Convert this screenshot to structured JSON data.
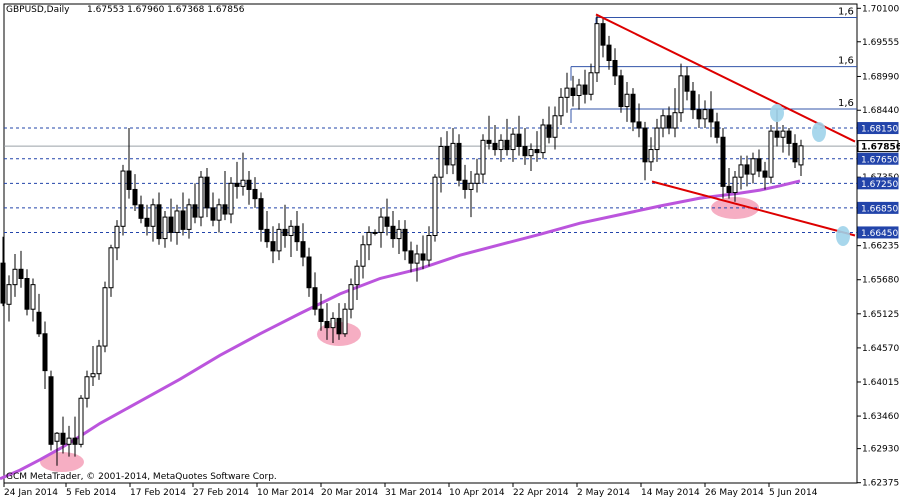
{
  "header": {
    "symbol": "GBPUSD,Daily",
    "ohlc": "1.67553 1.67960 1.67368 1.67856"
  },
  "footer": {
    "copyright": "GCM MetaTrader, © 2001-2014, MetaQuotes Software Corp."
  },
  "colors": {
    "background": "#ffffff",
    "axis": "#000000",
    "candle_up": "#ffffff",
    "candle_down": "#000000",
    "ma": "#bb55dd",
    "trend": "#dd0000",
    "levels": "#2244aa",
    "current_line": "#9aa0a6",
    "pink_marker": "#f4a0b8",
    "blue_marker": "#9fd3ea",
    "resistance": "#3355aa"
  },
  "chart_data": {
    "type": "candlestick",
    "symbol": "GBPUSD",
    "timeframe": "Daily",
    "ylim": [
      1.6237,
      1.7017
    ],
    "y_ticks": [
      "1.70100",
      "1.69555",
      "1.68990",
      "1.68440",
      "1.67350",
      "1.66235",
      "1.65680",
      "1.65125",
      "1.64570",
      "1.64015",
      "1.63460",
      "1.62930",
      "1.62375"
    ],
    "x_labels": [
      "24 Jan 2014",
      "5 Feb 2014",
      "17 Feb 2014",
      "27 Feb 2014",
      "10 Mar 2014",
      "20 Mar 2014",
      "31 Mar 2014",
      "10 Apr 2014",
      "22 Apr 2014",
      "2 May 2014",
      "14 May 2014",
      "26 May 2014",
      "5 Jun 2014"
    ],
    "levels": [
      {
        "label": "1.68150",
        "value": 1.6815,
        "style": "outline"
      },
      {
        "label": "1.67856",
        "value": 1.67856,
        "style": "current"
      },
      {
        "label": "1.67650",
        "value": 1.6765,
        "style": "outline"
      },
      {
        "label": "1.67250",
        "value": 1.6725,
        "style": "outline"
      },
      {
        "label": "1.66850",
        "value": 1.6685,
        "style": "outline"
      },
      {
        "label": "1.66450",
        "value": 1.6645,
        "style": "outline"
      }
    ],
    "fib_labels": [
      "1,6",
      "1,6",
      "1,6"
    ],
    "fib_levels": [
      1.6995,
      1.6915,
      1.6846
    ],
    "ma_points": [
      [
        0,
        1.6244
      ],
      [
        20,
        1.6258
      ],
      [
        40,
        1.6275
      ],
      [
        60,
        1.6293
      ],
      [
        80,
        1.6313
      ],
      [
        100,
        1.6334
      ],
      [
        140,
        1.637
      ],
      [
        180,
        1.6406
      ],
      [
        220,
        1.6445
      ],
      [
        260,
        1.648
      ],
      [
        300,
        1.6513
      ],
      [
        340,
        1.6545
      ],
      [
        380,
        1.657
      ],
      [
        420,
        1.6586
      ],
      [
        460,
        1.6608
      ],
      [
        500,
        1.6625
      ],
      [
        540,
        1.6642
      ],
      [
        580,
        1.666
      ],
      [
        620,
        1.6674
      ],
      [
        660,
        1.6688
      ],
      [
        700,
        1.6701
      ],
      [
        740,
        1.6709
      ],
      [
        760,
        1.6714
      ],
      [
        780,
        1.6721
      ],
      [
        800,
        1.6729
      ]
    ],
    "trendlines": [
      {
        "from": [
          596,
          1.7
        ],
        "to": [
          855,
          1.6793
        ]
      },
      {
        "from": [
          652,
          1.6728
        ],
        "to": [
          855,
          1.664
        ]
      }
    ],
    "candles": [
      {
        "x": 3,
        "o": 1.6595,
        "h": 1.6638,
        "l": 1.6525,
        "c": 1.653
      },
      {
        "x": 9,
        "o": 1.6528,
        "h": 1.6575,
        "l": 1.65,
        "c": 1.656
      },
      {
        "x": 15,
        "o": 1.656,
        "h": 1.661,
        "l": 1.654,
        "c": 1.6585
      },
      {
        "x": 21,
        "o": 1.6585,
        "h": 1.6615,
        "l": 1.6555,
        "c": 1.657
      },
      {
        "x": 27,
        "o": 1.657,
        "h": 1.6585,
        "l": 1.651,
        "c": 1.652
      },
      {
        "x": 33,
        "o": 1.652,
        "h": 1.657,
        "l": 1.65,
        "c": 1.656
      },
      {
        "x": 39,
        "o": 1.6515,
        "h": 1.6545,
        "l": 1.6475,
        "c": 1.648
      },
      {
        "x": 45,
        "o": 1.648,
        "h": 1.65,
        "l": 1.639,
        "c": 1.642
      },
      {
        "x": 51,
        "o": 1.641,
        "h": 1.642,
        "l": 1.629,
        "c": 1.63
      },
      {
        "x": 57,
        "o": 1.6305,
        "h": 1.632,
        "l": 1.6265,
        "c": 1.6318
      },
      {
        "x": 63,
        "o": 1.6318,
        "h": 1.6345,
        "l": 1.6285,
        "c": 1.63
      },
      {
        "x": 69,
        "o": 1.63,
        "h": 1.633,
        "l": 1.628,
        "c": 1.631
      },
      {
        "x": 75,
        "o": 1.631,
        "h": 1.6345,
        "l": 1.628,
        "c": 1.63
      },
      {
        "x": 81,
        "o": 1.63,
        "h": 1.638,
        "l": 1.6295,
        "c": 1.6375
      },
      {
        "x": 87,
        "o": 1.6375,
        "h": 1.642,
        "l": 1.636,
        "c": 1.641
      },
      {
        "x": 93,
        "o": 1.641,
        "h": 1.646,
        "l": 1.6395,
        "c": 1.6415
      },
      {
        "x": 99,
        "o": 1.6415,
        "h": 1.647,
        "l": 1.6405,
        "c": 1.646
      },
      {
        "x": 105,
        "o": 1.646,
        "h": 1.6565,
        "l": 1.645,
        "c": 1.6555
      },
      {
        "x": 111,
        "o": 1.6555,
        "h": 1.6625,
        "l": 1.654,
        "c": 1.662
      },
      {
        "x": 117,
        "o": 1.662,
        "h": 1.6665,
        "l": 1.66,
        "c": 1.6655
      },
      {
        "x": 123,
        "o": 1.6655,
        "h": 1.6755,
        "l": 1.664,
        "c": 1.6745
      },
      {
        "x": 129,
        "o": 1.6745,
        "h": 1.6815,
        "l": 1.67,
        "c": 1.6715
      },
      {
        "x": 135,
        "o": 1.6715,
        "h": 1.674,
        "l": 1.668,
        "c": 1.669
      },
      {
        "x": 141,
        "o": 1.669,
        "h": 1.6705,
        "l": 1.666,
        "c": 1.6668
      },
      {
        "x": 147,
        "o": 1.6668,
        "h": 1.669,
        "l": 1.664,
        "c": 1.6655
      },
      {
        "x": 153,
        "o": 1.6655,
        "h": 1.67,
        "l": 1.663,
        "c": 1.669
      },
      {
        "x": 159,
        "o": 1.669,
        "h": 1.671,
        "l": 1.6625,
        "c": 1.6635
      },
      {
        "x": 165,
        "o": 1.6635,
        "h": 1.668,
        "l": 1.662,
        "c": 1.667
      },
      {
        "x": 171,
        "o": 1.667,
        "h": 1.67,
        "l": 1.663,
        "c": 1.6645
      },
      {
        "x": 177,
        "o": 1.6645,
        "h": 1.669,
        "l": 1.6625,
        "c": 1.668
      },
      {
        "x": 183,
        "o": 1.668,
        "h": 1.671,
        "l": 1.664,
        "c": 1.665
      },
      {
        "x": 189,
        "o": 1.665,
        "h": 1.67,
        "l": 1.6635,
        "c": 1.669
      },
      {
        "x": 195,
        "o": 1.669,
        "h": 1.6725,
        "l": 1.666,
        "c": 1.667
      },
      {
        "x": 201,
        "o": 1.667,
        "h": 1.6745,
        "l": 1.6655,
        "c": 1.6735
      },
      {
        "x": 207,
        "o": 1.6735,
        "h": 1.675,
        "l": 1.667,
        "c": 1.6685
      },
      {
        "x": 213,
        "o": 1.6685,
        "h": 1.671,
        "l": 1.6655,
        "c": 1.6665
      },
      {
        "x": 219,
        "o": 1.6665,
        "h": 1.67,
        "l": 1.6645,
        "c": 1.669
      },
      {
        "x": 225,
        "o": 1.669,
        "h": 1.6745,
        "l": 1.6665,
        "c": 1.6675
      },
      {
        "x": 231,
        "o": 1.6675,
        "h": 1.6735,
        "l": 1.666,
        "c": 1.6725
      },
      {
        "x": 237,
        "o": 1.6725,
        "h": 1.676,
        "l": 1.67,
        "c": 1.672
      },
      {
        "x": 243,
        "o": 1.672,
        "h": 1.6775,
        "l": 1.6705,
        "c": 1.673
      },
      {
        "x": 249,
        "o": 1.673,
        "h": 1.6745,
        "l": 1.669,
        "c": 1.6715
      },
      {
        "x": 255,
        "o": 1.6715,
        "h": 1.6735,
        "l": 1.6685,
        "c": 1.67
      },
      {
        "x": 261,
        "o": 1.67,
        "h": 1.671,
        "l": 1.663,
        "c": 1.665
      },
      {
        "x": 267,
        "o": 1.665,
        "h": 1.668,
        "l": 1.662,
        "c": 1.663
      },
      {
        "x": 273,
        "o": 1.663,
        "h": 1.6655,
        "l": 1.6595,
        "c": 1.6615
      },
      {
        "x": 279,
        "o": 1.6615,
        "h": 1.666,
        "l": 1.66,
        "c": 1.665
      },
      {
        "x": 285,
        "o": 1.665,
        "h": 1.669,
        "l": 1.662,
        "c": 1.664
      },
      {
        "x": 291,
        "o": 1.664,
        "h": 1.6665,
        "l": 1.6605,
        "c": 1.6655
      },
      {
        "x": 297,
        "o": 1.6655,
        "h": 1.668,
        "l": 1.6615,
        "c": 1.663
      },
      {
        "x": 303,
        "o": 1.663,
        "h": 1.666,
        "l": 1.659,
        "c": 1.6605
      },
      {
        "x": 309,
        "o": 1.6605,
        "h": 1.662,
        "l": 1.654,
        "c": 1.6555
      },
      {
        "x": 315,
        "o": 1.6555,
        "h": 1.658,
        "l": 1.651,
        "c": 1.652
      },
      {
        "x": 321,
        "o": 1.652,
        "h": 1.6545,
        "l": 1.6485,
        "c": 1.65
      },
      {
        "x": 327,
        "o": 1.65,
        "h": 1.653,
        "l": 1.647,
        "c": 1.649
      },
      {
        "x": 333,
        "o": 1.649,
        "h": 1.6515,
        "l": 1.6465,
        "c": 1.6505
      },
      {
        "x": 339,
        "o": 1.6505,
        "h": 1.653,
        "l": 1.647,
        "c": 1.648
      },
      {
        "x": 345,
        "o": 1.648,
        "h": 1.653,
        "l": 1.6475,
        "c": 1.652
      },
      {
        "x": 351,
        "o": 1.652,
        "h": 1.657,
        "l": 1.6505,
        "c": 1.656
      },
      {
        "x": 357,
        "o": 1.656,
        "h": 1.66,
        "l": 1.6535,
        "c": 1.659
      },
      {
        "x": 363,
        "o": 1.659,
        "h": 1.664,
        "l": 1.657,
        "c": 1.6625
      },
      {
        "x": 369,
        "o": 1.6625,
        "h": 1.6655,
        "l": 1.66,
        "c": 1.6645
      },
      {
        "x": 375,
        "o": 1.6645,
        "h": 1.665,
        "l": 1.664,
        "c": 1.6645
      },
      {
        "x": 381,
        "o": 1.6645,
        "h": 1.6685,
        "l": 1.662,
        "c": 1.667
      },
      {
        "x": 387,
        "o": 1.667,
        "h": 1.67,
        "l": 1.664,
        "c": 1.6655
      },
      {
        "x": 393,
        "o": 1.6655,
        "h": 1.668,
        "l": 1.662,
        "c": 1.6635
      },
      {
        "x": 399,
        "o": 1.6635,
        "h": 1.6665,
        "l": 1.661,
        "c": 1.665
      },
      {
        "x": 405,
        "o": 1.665,
        "h": 1.6665,
        "l": 1.66,
        "c": 1.6615
      },
      {
        "x": 411,
        "o": 1.6615,
        "h": 1.663,
        "l": 1.658,
        "c": 1.6595
      },
      {
        "x": 417,
        "o": 1.6595,
        "h": 1.6625,
        "l": 1.6565,
        "c": 1.661
      },
      {
        "x": 423,
        "o": 1.661,
        "h": 1.664,
        "l": 1.6585,
        "c": 1.66
      },
      {
        "x": 429,
        "o": 1.66,
        "h": 1.6655,
        "l": 1.659,
        "c": 1.664
      },
      {
        "x": 435,
        "o": 1.664,
        "h": 1.674,
        "l": 1.663,
        "c": 1.6735
      },
      {
        "x": 441,
        "o": 1.6735,
        "h": 1.68,
        "l": 1.671,
        "c": 1.6785
      },
      {
        "x": 447,
        "o": 1.6785,
        "h": 1.681,
        "l": 1.674,
        "c": 1.6755
      },
      {
        "x": 453,
        "o": 1.6755,
        "h": 1.6815,
        "l": 1.674,
        "c": 1.679
      },
      {
        "x": 459,
        "o": 1.679,
        "h": 1.6805,
        "l": 1.672,
        "c": 1.673
      },
      {
        "x": 465,
        "o": 1.673,
        "h": 1.6755,
        "l": 1.67,
        "c": 1.6715
      },
      {
        "x": 471,
        "o": 1.6715,
        "h": 1.6745,
        "l": 1.667,
        "c": 1.6725
      },
      {
        "x": 477,
        "o": 1.6725,
        "h": 1.6765,
        "l": 1.671,
        "c": 1.674
      },
      {
        "x": 483,
        "o": 1.674,
        "h": 1.6805,
        "l": 1.6725,
        "c": 1.6795
      },
      {
        "x": 489,
        "o": 1.6795,
        "h": 1.6835,
        "l": 1.678,
        "c": 1.679
      },
      {
        "x": 495,
        "o": 1.679,
        "h": 1.682,
        "l": 1.677,
        "c": 1.678
      },
      {
        "x": 501,
        "o": 1.678,
        "h": 1.6805,
        "l": 1.676,
        "c": 1.6795
      },
      {
        "x": 507,
        "o": 1.6795,
        "h": 1.683,
        "l": 1.677,
        "c": 1.678
      },
      {
        "x": 513,
        "o": 1.678,
        "h": 1.6815,
        "l": 1.676,
        "c": 1.6805
      },
      {
        "x": 519,
        "o": 1.6805,
        "h": 1.6835,
        "l": 1.677,
        "c": 1.6785
      },
      {
        "x": 525,
        "o": 1.6785,
        "h": 1.6815,
        "l": 1.6755,
        "c": 1.677
      },
      {
        "x": 531,
        "o": 1.677,
        "h": 1.679,
        "l": 1.6745,
        "c": 1.678
      },
      {
        "x": 537,
        "o": 1.678,
        "h": 1.681,
        "l": 1.676,
        "c": 1.6775
      },
      {
        "x": 543,
        "o": 1.6775,
        "h": 1.683,
        "l": 1.6765,
        "c": 1.682
      },
      {
        "x": 549,
        "o": 1.682,
        "h": 1.685,
        "l": 1.679,
        "c": 1.68
      },
      {
        "x": 555,
        "o": 1.68,
        "h": 1.685,
        "l": 1.678,
        "c": 1.6835
      },
      {
        "x": 561,
        "o": 1.6835,
        "h": 1.688,
        "l": 1.682,
        "c": 1.6865
      },
      {
        "x": 567,
        "o": 1.6865,
        "h": 1.6905,
        "l": 1.684,
        "c": 1.688
      },
      {
        "x": 573,
        "o": 1.688,
        "h": 1.69,
        "l": 1.685,
        "c": 1.6868
      },
      {
        "x": 579,
        "o": 1.6868,
        "h": 1.6895,
        "l": 1.6845,
        "c": 1.6885
      },
      {
        "x": 585,
        "o": 1.6885,
        "h": 1.691,
        "l": 1.6855,
        "c": 1.687
      },
      {
        "x": 591,
        "o": 1.687,
        "h": 1.692,
        "l": 1.686,
        "c": 1.6905
      },
      {
        "x": 597,
        "o": 1.6905,
        "h": 1.7,
        "l": 1.689,
        "c": 1.6985
      },
      {
        "x": 603,
        "o": 1.6985,
        "h": 1.6995,
        "l": 1.693,
        "c": 1.695
      },
      {
        "x": 609,
        "o": 1.695,
        "h": 1.6965,
        "l": 1.691,
        "c": 1.6925
      },
      {
        "x": 615,
        "o": 1.6925,
        "h": 1.6945,
        "l": 1.6885,
        "c": 1.69
      },
      {
        "x": 621,
        "o": 1.69,
        "h": 1.691,
        "l": 1.684,
        "c": 1.685
      },
      {
        "x": 627,
        "o": 1.685,
        "h": 1.689,
        "l": 1.6825,
        "c": 1.687
      },
      {
        "x": 633,
        "o": 1.687,
        "h": 1.688,
        "l": 1.681,
        "c": 1.6825
      },
      {
        "x": 639,
        "o": 1.6825,
        "h": 1.6855,
        "l": 1.68,
        "c": 1.6815
      },
      {
        "x": 645,
        "o": 1.6815,
        "h": 1.6825,
        "l": 1.673,
        "c": 1.676
      },
      {
        "x": 651,
        "o": 1.676,
        "h": 1.68,
        "l": 1.6745,
        "c": 1.678
      },
      {
        "x": 657,
        "o": 1.678,
        "h": 1.683,
        "l": 1.676,
        "c": 1.6815
      },
      {
        "x": 663,
        "o": 1.6815,
        "h": 1.6845,
        "l": 1.68,
        "c": 1.6835
      },
      {
        "x": 669,
        "o": 1.6835,
        "h": 1.685,
        "l": 1.6805,
        "c": 1.6815
      },
      {
        "x": 675,
        "o": 1.6815,
        "h": 1.688,
        "l": 1.68,
        "c": 1.684
      },
      {
        "x": 681,
        "o": 1.684,
        "h": 1.692,
        "l": 1.6825,
        "c": 1.69
      },
      {
        "x": 687,
        "o": 1.69,
        "h": 1.6915,
        "l": 1.686,
        "c": 1.6875
      },
      {
        "x": 693,
        "o": 1.6875,
        "h": 1.689,
        "l": 1.683,
        "c": 1.6845
      },
      {
        "x": 699,
        "o": 1.6845,
        "h": 1.687,
        "l": 1.6815,
        "c": 1.683
      },
      {
        "x": 705,
        "o": 1.683,
        "h": 1.686,
        "l": 1.6815,
        "c": 1.6845
      },
      {
        "x": 711,
        "o": 1.6845,
        "h": 1.6875,
        "l": 1.68,
        "c": 1.6825
      },
      {
        "x": 717,
        "o": 1.6825,
        "h": 1.684,
        "l": 1.679,
        "c": 1.68
      },
      {
        "x": 723,
        "o": 1.68,
        "h": 1.6815,
        "l": 1.67,
        "c": 1.672
      },
      {
        "x": 729,
        "o": 1.672,
        "h": 1.675,
        "l": 1.67,
        "c": 1.671
      },
      {
        "x": 735,
        "o": 1.671,
        "h": 1.6745,
        "l": 1.6695,
        "c": 1.6735
      },
      {
        "x": 741,
        "o": 1.6735,
        "h": 1.677,
        "l": 1.6715,
        "c": 1.6755
      },
      {
        "x": 747,
        "o": 1.6755,
        "h": 1.677,
        "l": 1.672,
        "c": 1.674
      },
      {
        "x": 753,
        "o": 1.674,
        "h": 1.6775,
        "l": 1.6725,
        "c": 1.6765
      },
      {
        "x": 759,
        "o": 1.6765,
        "h": 1.678,
        "l": 1.6735,
        "c": 1.6745
      },
      {
        "x": 765,
        "o": 1.6745,
        "h": 1.676,
        "l": 1.6715,
        "c": 1.6735
      },
      {
        "x": 771,
        "o": 1.6735,
        "h": 1.682,
        "l": 1.6725,
        "c": 1.681
      },
      {
        "x": 777,
        "o": 1.681,
        "h": 1.6845,
        "l": 1.6785,
        "c": 1.68
      },
      {
        "x": 783,
        "o": 1.68,
        "h": 1.682,
        "l": 1.6775,
        "c": 1.681
      },
      {
        "x": 789,
        "o": 1.681,
        "h": 1.6815,
        "l": 1.677,
        "c": 1.679
      },
      {
        "x": 795,
        "o": 1.679,
        "h": 1.6805,
        "l": 1.675,
        "c": 1.676
      },
      {
        "x": 801,
        "o": 1.6755,
        "h": 1.6796,
        "l": 1.6737,
        "c": 1.6786
      }
    ]
  }
}
